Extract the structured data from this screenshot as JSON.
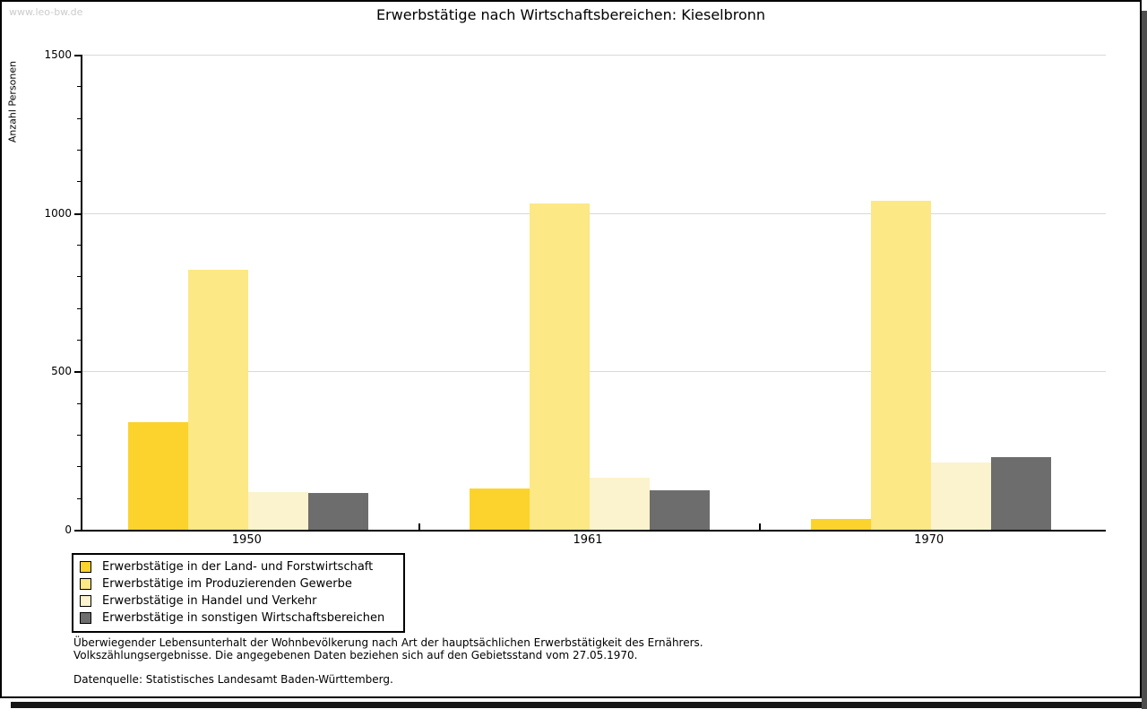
{
  "watermark": "www.leo-bw.de",
  "title": "Erwerbstätige nach Wirtschaftsbereichen: Kieselbronn",
  "chart_data": {
    "type": "bar",
    "title": "Erwerbstätige nach Wirtschaftsbereichen: Kieselbronn",
    "xlabel": "",
    "ylabel": "Anzahl Personen",
    "categories": [
      "1950",
      "1961",
      "1970"
    ],
    "series": [
      {
        "name": "Erwerbstätige in der Land- und Forstwirtschaft",
        "color": "#fcd32c",
        "values": [
          340,
          130,
          33
        ]
      },
      {
        "name": "Erwerbstätige im Produzierenden Gewerbe",
        "color": "#fce885",
        "values": [
          822,
          1031,
          1040
        ]
      },
      {
        "name": "Erwerbstätige in Handel und Verkehr",
        "color": "#fbf3cd",
        "values": [
          120,
          165,
          211
        ]
      },
      {
        "name": "Erwerbstätige in sonstigen Wirtschaftsbereichen",
        "color": "#6d6d6d",
        "values": [
          117,
          125,
          229
        ]
      }
    ],
    "ylim": [
      0,
      1500
    ],
    "yticks": [
      0,
      500,
      1000,
      1500
    ],
    "minor_tick_step": 100,
    "grid": true,
    "gridline_color": "#d9d9d9",
    "legend_position": "bottom-left"
  },
  "footnotes": {
    "line1": "Überwiegender Lebensunterhalt der Wohnbevölkerung nach Art der hauptsächlichen Erwerbstätigkeit des Ernährers.",
    "line2": "Volkszählungsergebnisse. Die angegebenen Daten beziehen sich auf den Gebietsstand vom 27.05.1970.",
    "source": "Datenquelle: Statistisches Landesamt Baden-Württemberg."
  }
}
